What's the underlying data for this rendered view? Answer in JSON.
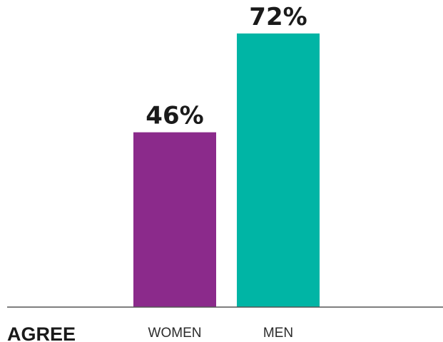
{
  "chart_data": {
    "type": "bar",
    "title": "",
    "group_label": "AGREE",
    "categories": [
      "WOMEN",
      "MEN"
    ],
    "values": [
      46,
      72
    ],
    "value_labels": [
      "46%",
      "72%"
    ],
    "colors": [
      "#8b2a8b",
      "#00b5a5"
    ],
    "ylim": [
      0,
      72
    ],
    "grid": false,
    "axis_color": "#555555"
  }
}
